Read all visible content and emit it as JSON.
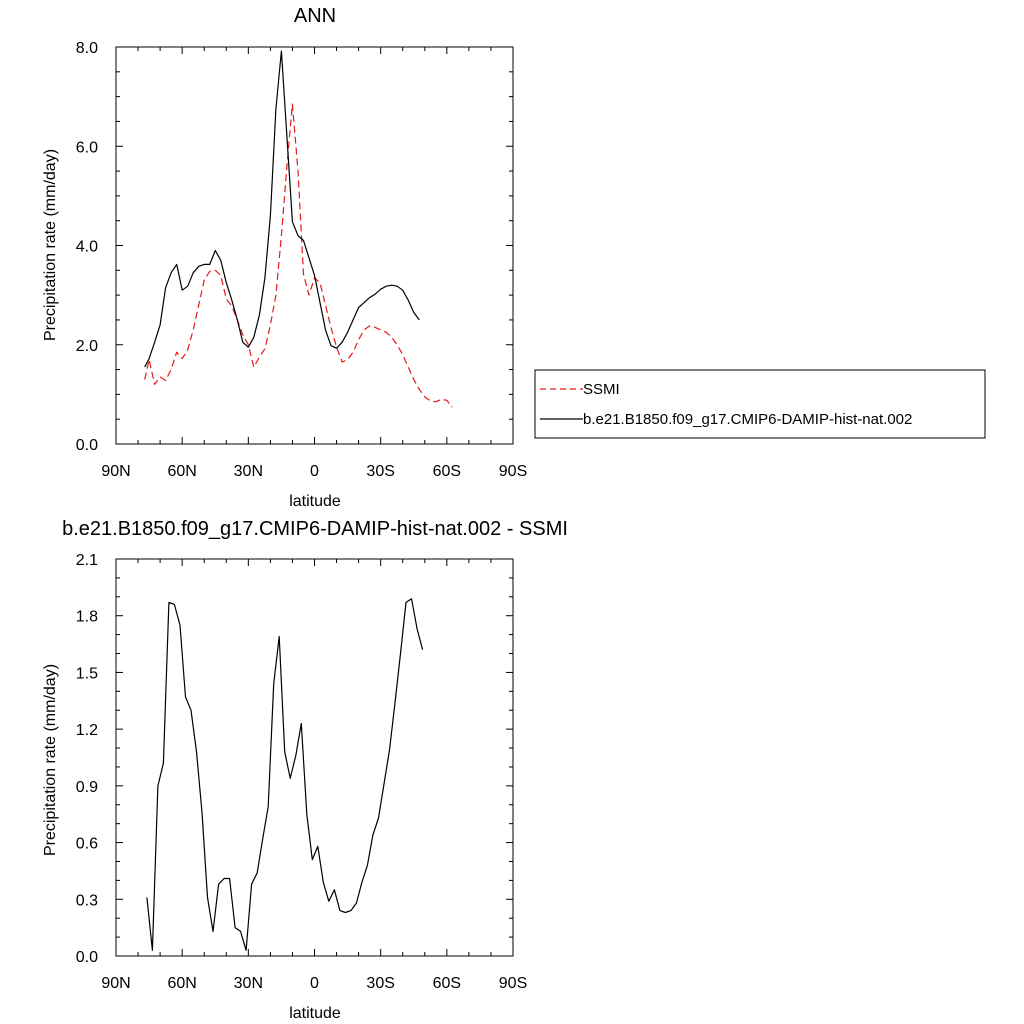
{
  "chart_data": [
    {
      "type": "line",
      "title": "ANN",
      "xlabel": "latitude",
      "ylabel": "Precipitation rate (mm/day)",
      "xlim": [
        -90,
        90
      ],
      "x_reversed": true,
      "x_ticks": [
        {
          "value": 90,
          "label": "90N"
        },
        {
          "value": 60,
          "label": "60N"
        },
        {
          "value": 30,
          "label": "30N"
        },
        {
          "value": 0,
          "label": "0"
        },
        {
          "value": -30,
          "label": "30S"
        },
        {
          "value": -60,
          "label": "60S"
        },
        {
          "value": -90,
          "label": "90S"
        }
      ],
      "ylim": [
        0,
        8
      ],
      "y_ticks": [
        {
          "value": 0,
          "label": "0.0"
        },
        {
          "value": 2,
          "label": "2.0"
        },
        {
          "value": 4,
          "label": "4.0"
        },
        {
          "value": 6,
          "label": "6.0"
        },
        {
          "value": 8,
          "label": "8.0"
        }
      ],
      "legend": {
        "position": "right, outside plot"
      },
      "series": [
        {
          "name": "SSMI",
          "color": "#e41a1c",
          "dash": true,
          "points": [
            [
              77,
              1.3
            ],
            [
              75,
              1.7
            ],
            [
              72.5,
              1.2
            ],
            [
              70,
              1.35
            ],
            [
              67.5,
              1.28
            ],
            [
              65,
              1.5
            ],
            [
              62.5,
              1.85
            ],
            [
              60,
              1.72
            ],
            [
              57.5,
              1.9
            ],
            [
              55,
              2.3
            ],
            [
              52.5,
              2.8
            ],
            [
              50,
              3.3
            ],
            [
              47.5,
              3.48
            ],
            [
              45,
              3.5
            ],
            [
              42.5,
              3.4
            ],
            [
              40,
              2.92
            ],
            [
              37.5,
              2.78
            ],
            [
              35,
              2.5
            ],
            [
              32.5,
              2.2
            ],
            [
              30,
              2.0
            ],
            [
              27.5,
              1.55
            ],
            [
              25,
              1.75
            ],
            [
              22.5,
              1.92
            ],
            [
              20,
              2.4
            ],
            [
              17.5,
              3.0
            ],
            [
              15,
              4.2
            ],
            [
              12.5,
              5.6
            ],
            [
              10,
              6.85
            ],
            [
              7.5,
              5.5
            ],
            [
              5,
              3.42
            ],
            [
              2.5,
              3.0
            ],
            [
              0,
              3.35
            ],
            [
              -2.5,
              3.25
            ],
            [
              -5,
              2.8
            ],
            [
              -7.5,
              2.35
            ],
            [
              -10,
              1.95
            ],
            [
              -12.5,
              1.65
            ],
            [
              -15,
              1.7
            ],
            [
              -17.5,
              1.85
            ],
            [
              -20,
              2.1
            ],
            [
              -22.5,
              2.3
            ],
            [
              -25,
              2.38
            ],
            [
              -27.5,
              2.35
            ],
            [
              -30,
              2.3
            ],
            [
              -32.5,
              2.25
            ],
            [
              -35,
              2.15
            ],
            [
              -37.5,
              2.0
            ],
            [
              -40,
              1.8
            ],
            [
              -42.5,
              1.55
            ],
            [
              -45,
              1.3
            ],
            [
              -47.5,
              1.1
            ],
            [
              -50,
              0.95
            ],
            [
              -52.5,
              0.87
            ],
            [
              -55,
              0.85
            ],
            [
              -57.5,
              0.9
            ],
            [
              -60,
              0.88
            ],
            [
              -62.5,
              0.74
            ]
          ]
        },
        {
          "name": "b.e21.B1850.f09_g17.CMIP6-DAMIP-hist-nat.002",
          "color": "#000000",
          "dash": false,
          "points": [
            [
              77,
              1.55
            ],
            [
              75,
              1.72
            ],
            [
              72.5,
              2.05
            ],
            [
              70,
              2.4
            ],
            [
              67.5,
              3.15
            ],
            [
              65,
              3.45
            ],
            [
              62.5,
              3.62
            ],
            [
              60,
              3.1
            ],
            [
              57.5,
              3.18
            ],
            [
              55,
              3.45
            ],
            [
              52.5,
              3.58
            ],
            [
              50,
              3.62
            ],
            [
              47.5,
              3.62
            ],
            [
              45,
              3.9
            ],
            [
              42.5,
              3.7
            ],
            [
              40,
              3.25
            ],
            [
              37.5,
              2.9
            ],
            [
              35,
              2.5
            ],
            [
              32.5,
              2.05
            ],
            [
              30,
              1.95
            ],
            [
              27.5,
              2.15
            ],
            [
              25,
              2.6
            ],
            [
              22.5,
              3.35
            ],
            [
              20,
              4.6
            ],
            [
              17.5,
              6.75
            ],
            [
              15,
              7.92
            ],
            [
              12.5,
              6.2
            ],
            [
              10,
              4.48
            ],
            [
              7.5,
              4.2
            ],
            [
              5,
              4.1
            ],
            [
              2.5,
              3.75
            ],
            [
              0,
              3.4
            ],
            [
              -2.5,
              2.85
            ],
            [
              -5,
              2.3
            ],
            [
              -7.5,
              1.98
            ],
            [
              -10,
              1.93
            ],
            [
              -12.5,
              2.05
            ],
            [
              -15,
              2.25
            ],
            [
              -17.5,
              2.5
            ],
            [
              -20,
              2.75
            ],
            [
              -22.5,
              2.85
            ],
            [
              -25,
              2.95
            ],
            [
              -27.5,
              3.02
            ],
            [
              -30,
              3.12
            ],
            [
              -32.5,
              3.18
            ],
            [
              -35,
              3.2
            ],
            [
              -37.5,
              3.18
            ],
            [
              -40,
              3.1
            ],
            [
              -42.5,
              2.9
            ],
            [
              -45,
              2.65
            ],
            [
              -47.5,
              2.5
            ]
          ]
        }
      ]
    },
    {
      "type": "line",
      "title": "b.e21.B1850.f09_g17.CMIP6-DAMIP-hist-nat.002 - SSMI",
      "xlabel": "latitude",
      "ylabel": "Precipitation rate (mm/day)",
      "xlim": [
        -90,
        90
      ],
      "x_reversed": true,
      "x_ticks": [
        {
          "value": 90,
          "label": "90N"
        },
        {
          "value": 60,
          "label": "60N"
        },
        {
          "value": 30,
          "label": "30N"
        },
        {
          "value": 0,
          "label": "0"
        },
        {
          "value": -30,
          "label": "30S"
        },
        {
          "value": -60,
          "label": "60S"
        },
        {
          "value": -90,
          "label": "90S"
        }
      ],
      "ylim": [
        0,
        2.1
      ],
      "y_ticks": [
        {
          "value": 0,
          "label": "0.0"
        },
        {
          "value": 0.3,
          "label": "0.3"
        },
        {
          "value": 0.6,
          "label": "0.6"
        },
        {
          "value": 0.9,
          "label": "0.9"
        },
        {
          "value": 1.2,
          "label": "1.2"
        },
        {
          "value": 1.5,
          "label": "1.5"
        },
        {
          "value": 1.8,
          "label": "1.8"
        },
        {
          "value": 2.1,
          "label": "2.1"
        }
      ],
      "series": [
        {
          "color": "#000000",
          "dash": false,
          "points": [
            [
              76,
              0.31
            ],
            [
              73.5,
              0.03
            ],
            [
              71,
              0.9
            ],
            [
              68.5,
              1.02
            ],
            [
              66,
              1.87
            ],
            [
              63.5,
              1.86
            ],
            [
              61,
              1.75
            ],
            [
              58.5,
              1.37
            ],
            [
              56,
              1.3
            ],
            [
              53.5,
              1.08
            ],
            [
              51,
              0.76
            ],
            [
              48.5,
              0.31
            ],
            [
              46,
              0.13
            ],
            [
              43.5,
              0.38
            ],
            [
              41,
              0.41
            ],
            [
              38.5,
              0.41
            ],
            [
              36,
              0.15
            ],
            [
              33.5,
              0.13
            ],
            [
              31,
              0.03
            ],
            [
              28.5,
              0.38
            ],
            [
              26,
              0.44
            ],
            [
              23.5,
              0.62
            ],
            [
              21,
              0.79
            ],
            [
              18.5,
              1.44
            ],
            [
              16,
              1.69
            ],
            [
              13.5,
              1.08
            ],
            [
              11,
              0.94
            ],
            [
              8.5,
              1.06
            ],
            [
              6,
              1.23
            ],
            [
              3.5,
              0.75
            ],
            [
              1,
              0.51
            ],
            [
              -1.5,
              0.58
            ],
            [
              -4,
              0.39
            ],
            [
              -6.5,
              0.29
            ],
            [
              -9,
              0.35
            ],
            [
              -11.5,
              0.24
            ],
            [
              -14,
              0.23
            ],
            [
              -16.5,
              0.24
            ],
            [
              -19,
              0.28
            ],
            [
              -21.5,
              0.39
            ],
            [
              -24,
              0.48
            ],
            [
              -26.5,
              0.64
            ],
            [
              -29,
              0.73
            ],
            [
              -31.5,
              0.91
            ],
            [
              -34,
              1.09
            ],
            [
              -36.5,
              1.34
            ],
            [
              -39,
              1.6
            ],
            [
              -41.5,
              1.87
            ],
            [
              -44,
              1.89
            ],
            [
              -46.5,
              1.73
            ],
            [
              -49,
              1.62
            ]
          ]
        }
      ]
    }
  ]
}
